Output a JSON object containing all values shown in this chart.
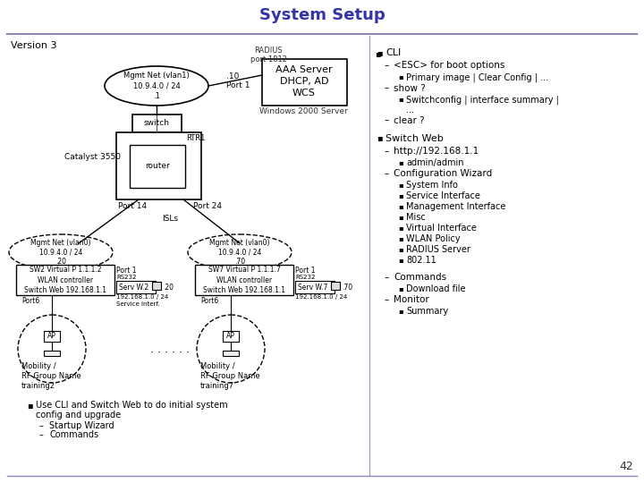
{
  "title": "System Setup",
  "title_color": "#3333aa",
  "bg_color": "#ffffff",
  "page_number": "42",
  "version": "Version 3",
  "radius_label": "RADIUS\nport 1812",
  "aaa_box_text": "AAA Server\nDHCP, AD\nWCS",
  "windows_label": "Windows 2000 Server",
  "mgmt_net_vlan1": "Mgmt Net (vlan1)\n10.9.4.0 / 24\n.1",
  "switch_label": "switch",
  "catalyst_label": "Catalyst 3550",
  "router_label": "router",
  "rtr1_label": "RTR1",
  "port1_label": "Port 1",
  "port10_label": ".10",
  "port14_label": "Port 14",
  "port24_label": "Port 24",
  "isls_label": "ISLs",
  "mgmt_net_vlan0_left": "Mgmt Net (vlan0)\n10.9.4.0 / 24\n.20",
  "mgmt_net_vlan0_right": "Mgmt Net (vlan0)\n10.9.4.0 / 24\n.70",
  "sw2_label": "SW2 Virtual P 1.1.1.2\nWLAN controller\nSwitch Web 192.168.1.1",
  "sw7_label": "SW7 Virtual P 1.1.1.7\nWLAN controller\nSwitch Web 192.168.1.1",
  "serv_w2_label": "Serv W.2",
  "serv_w7_label": "Serv W.7",
  "rs232_label": "RS232",
  "dot20_label": ".20",
  "dot70_label": ".70",
  "subnet_label": "192.168.1.0 / 24",
  "service_interf_label": "Service Interf.",
  "port6_left": "Port6",
  "port6_right": "Port6",
  "port1_left": "Port 1",
  "port1_right": "Port 1",
  "ap_label": "AP",
  "dots_label": ". . . . . .",
  "mobility_left": "Mobility /\nRF Group Name\ntraining2",
  "mobility_right": "Mobility /\nRF Group Name\ntraining7",
  "bullet1_line1": "Use CLI and Switch Web to do initial system",
  "bullet1_line2": "config and upgrade",
  "sub_bullet1a": "Startup Wizard",
  "sub_bullet1b": "Commands",
  "right_col": [
    {
      "type": "bullet",
      "text": "CLI"
    },
    {
      "type": "dash",
      "text": "<ESC> for boot options"
    },
    {
      "type": "sub_bullet",
      "text": "Primary image | Clear Config | ..."
    },
    {
      "type": "dash",
      "text": "show ?"
    },
    {
      "type": "sub_bullet",
      "text": "Switchconfig | interface summary |"
    },
    {
      "type": "sub_bullet_cont",
      "text": "..."
    },
    {
      "type": "dash",
      "text": "clear ?"
    },
    {
      "type": "blank",
      "text": ""
    },
    {
      "type": "bullet",
      "text": "Switch Web"
    },
    {
      "type": "dash",
      "text": "http://192.168.1.1"
    },
    {
      "type": "sub_bullet",
      "text": "admin/admin"
    },
    {
      "type": "dash",
      "text": "Configuration Wizard"
    },
    {
      "type": "sub_bullet",
      "text": "System Info"
    },
    {
      "type": "sub_bullet",
      "text": "Service Interface"
    },
    {
      "type": "sub_bullet",
      "text": "Management Interface"
    },
    {
      "type": "sub_bullet",
      "text": "Misc"
    },
    {
      "type": "sub_bullet",
      "text": "Virtual Interface"
    },
    {
      "type": "sub_bullet",
      "text": "WLAN Policy"
    },
    {
      "type": "sub_bullet",
      "text": "RADIUS Server"
    },
    {
      "type": "sub_bullet",
      "text": "802.11"
    },
    {
      "type": "blank",
      "text": ""
    },
    {
      "type": "dash",
      "text": "Commands"
    },
    {
      "type": "sub_bullet",
      "text": "Download file"
    },
    {
      "type": "dash",
      "text": "Monitor"
    },
    {
      "type": "sub_bullet",
      "text": "Summary"
    }
  ]
}
